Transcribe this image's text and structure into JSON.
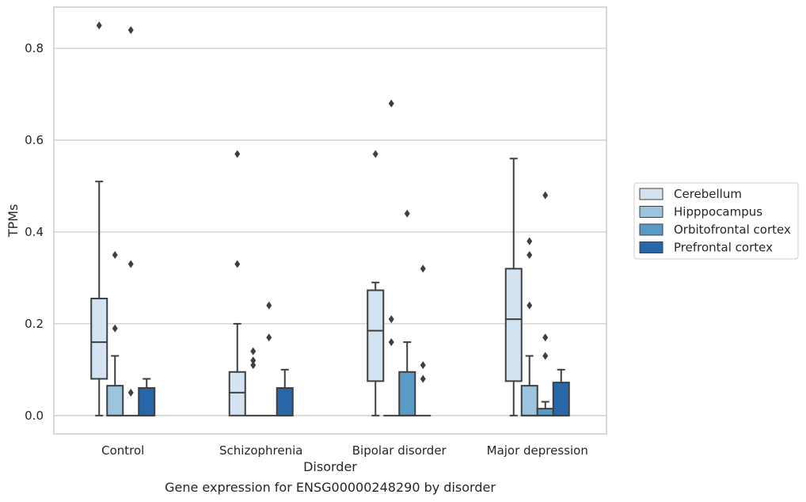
{
  "chart_data": {
    "type": "box",
    "xlabel": "Disorder",
    "ylabel": "TPMs",
    "caption": "Gene expression for ENSG00000248290 by disorder",
    "categories": [
      "Control",
      "Schizophrenia",
      "Bipolar disorder",
      "Major depression"
    ],
    "ylim": [
      -0.04,
      0.89
    ],
    "yticks": [
      0.0,
      0.2,
      0.4,
      0.6,
      0.8
    ],
    "ytick_labels": [
      "0.0",
      "0.2",
      "0.4",
      "0.6",
      "0.8"
    ],
    "grid": true,
    "legend_position": "right",
    "series": [
      {
        "name": "Cerebellum",
        "color": "#d4e3f2",
        "boxes": [
          {
            "whisker_low": 0.0,
            "q1": 0.08,
            "median": 0.16,
            "q3": 0.255,
            "whisker_high": 0.51,
            "outliers": [
              0.85
            ]
          },
          {
            "whisker_low": 0.0,
            "q1": 0.0,
            "median": 0.05,
            "q3": 0.095,
            "whisker_high": 0.2,
            "outliers": [
              0.33,
              0.57
            ]
          },
          {
            "whisker_low": 0.0,
            "q1": 0.075,
            "median": 0.185,
            "q3": 0.273,
            "whisker_high": 0.29,
            "outliers": [
              0.57
            ]
          },
          {
            "whisker_low": 0.0,
            "q1": 0.075,
            "median": 0.21,
            "q3": 0.32,
            "whisker_high": 0.56,
            "outliers": []
          }
        ]
      },
      {
        "name": "Hipppocampus",
        "color": "#9cc4de",
        "boxes": [
          {
            "whisker_low": 0.0,
            "q1": 0.0,
            "median": 0.0,
            "q3": 0.065,
            "whisker_high": 0.13,
            "outliers": [
              0.19,
              0.35
            ]
          },
          {
            "whisker_low": 0.0,
            "q1": 0.0,
            "median": 0.0,
            "q3": 0.0,
            "whisker_high": 0.0,
            "outliers": [
              0.11,
              0.12,
              0.14
            ]
          },
          {
            "whisker_low": 0.0,
            "q1": 0.0,
            "median": 0.0,
            "q3": 0.0,
            "whisker_high": 0.0,
            "outliers": [
              0.16,
              0.21,
              0.68
            ]
          },
          {
            "whisker_low": 0.0,
            "q1": 0.0,
            "median": 0.0,
            "q3": 0.065,
            "whisker_high": 0.13,
            "outliers": [
              0.24,
              0.35,
              0.38
            ]
          }
        ]
      },
      {
        "name": "Orbitofrontal cortex",
        "color": "#5a9ac6",
        "boxes": [
          {
            "whisker_low": 0.0,
            "q1": 0.0,
            "median": 0.0,
            "q3": 0.0,
            "whisker_high": 0.0,
            "outliers": [
              0.05,
              0.33,
              0.84
            ]
          },
          {
            "whisker_low": 0.0,
            "q1": 0.0,
            "median": 0.0,
            "q3": 0.0,
            "whisker_high": 0.0,
            "outliers": [
              0.17,
              0.24
            ]
          },
          {
            "whisker_low": 0.0,
            "q1": 0.0,
            "median": 0.0,
            "q3": 0.095,
            "whisker_high": 0.16,
            "outliers": [
              0.44
            ]
          },
          {
            "whisker_low": 0.0,
            "q1": 0.0,
            "median": 0.0,
            "q3": 0.015,
            "whisker_high": 0.03,
            "outliers": [
              0.13,
              0.17,
              0.48
            ]
          }
        ]
      },
      {
        "name": "Prefrontal cortex",
        "color": "#2767a8",
        "boxes": [
          {
            "whisker_low": 0.0,
            "q1": 0.0,
            "median": 0.0,
            "q3": 0.06,
            "whisker_high": 0.08,
            "outliers": []
          },
          {
            "whisker_low": 0.0,
            "q1": 0.0,
            "median": 0.0,
            "q3": 0.06,
            "whisker_high": 0.1,
            "outliers": []
          },
          {
            "whisker_low": 0.0,
            "q1": 0.0,
            "median": 0.0,
            "q3": 0.0,
            "whisker_high": 0.0,
            "outliers": [
              0.08,
              0.11,
              0.32
            ]
          },
          {
            "whisker_low": 0.0,
            "q1": 0.0,
            "median": 0.0,
            "q3": 0.072,
            "whisker_high": 0.1,
            "outliers": []
          }
        ]
      }
    ]
  }
}
